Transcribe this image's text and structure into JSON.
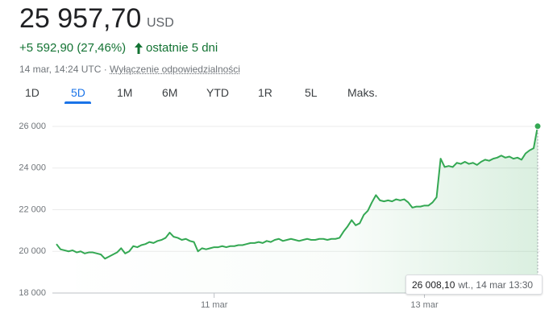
{
  "header": {
    "price": "25 957,70",
    "currency": "USD",
    "change": "+5 592,90 (27,46%)",
    "period": "ostatnie 5 dni",
    "timestamp": "14 mar, 14:24 UTC ·",
    "disclaimer": "Wyłączenie odpowiedzialności"
  },
  "tabs": [
    "1D",
    "5D",
    "1M",
    "6M",
    "YTD",
    "1R",
    "5L",
    "Maks."
  ],
  "selected_tab": "5D",
  "chart_data": {
    "type": "line",
    "color": "#34a853",
    "categories": [
      null,
      null,
      null,
      null,
      null,
      null,
      null,
      null,
      null,
      null,
      null,
      null,
      null,
      null,
      null,
      null,
      null,
      null,
      null,
      null,
      null,
      null,
      null,
      null,
      null,
      null,
      null,
      null,
      null,
      null,
      null,
      null,
      null,
      null,
      null,
      null,
      null,
      null,
      null,
      "11 mar",
      null,
      null,
      null,
      null,
      null,
      null,
      null,
      null,
      null,
      null,
      null,
      null,
      null,
      null,
      null,
      null,
      null,
      null,
      null,
      null,
      null,
      null,
      null,
      null,
      null,
      null,
      null,
      null,
      null,
      null,
      null,
      null,
      null,
      null,
      null,
      null,
      null,
      null,
      null,
      null,
      null,
      null,
      null,
      null,
      null,
      null,
      null,
      null,
      null,
      null,
      null,
      "13 mar",
      null,
      null,
      null,
      null,
      null,
      null,
      null,
      null,
      null,
      null,
      null,
      null,
      null,
      null,
      null,
      null,
      null,
      null,
      null,
      null,
      null,
      null,
      null,
      null,
      null,
      null,
      null,
      null
    ],
    "values": [
      20350,
      20100,
      20050,
      20000,
      20050,
      19950,
      20000,
      19900,
      19950,
      19950,
      19900,
      19850,
      19650,
      19750,
      19850,
      19950,
      20150,
      19900,
      20000,
      20250,
      20200,
      20300,
      20350,
      20450,
      20400,
      20500,
      20550,
      20650,
      20900,
      20700,
      20650,
      20550,
      20600,
      20500,
      20450,
      20000,
      20150,
      20100,
      20150,
      20200,
      20200,
      20250,
      20200,
      20250,
      20250,
      20300,
      20300,
      20350,
      20400,
      20400,
      20450,
      20400,
      20500,
      20450,
      20550,
      20600,
      20500,
      20550,
      20600,
      20550,
      20500,
      20550,
      20600,
      20550,
      20550,
      20600,
      20600,
      20550,
      20600,
      20600,
      20650,
      20950,
      21200,
      21500,
      21250,
      21350,
      21750,
      21950,
      22350,
      22700,
      22450,
      22400,
      22450,
      22400,
      22500,
      22450,
      22500,
      22350,
      22100,
      22150,
      22150,
      22200,
      22200,
      22350,
      22600,
      24450,
      24050,
      24100,
      24050,
      24250,
      24200,
      24300,
      24200,
      24250,
      24150,
      24300,
      24400,
      24350,
      24450,
      24500,
      24600,
      24500,
      24550,
      24450,
      24500,
      24400,
      24700,
      24850,
      24950,
      26008.1
    ],
    "ylim": [
      18000,
      26000
    ],
    "yticks": [
      {
        "value": 18000,
        "label": "18 000"
      },
      {
        "value": 20000,
        "label": "20 000"
      },
      {
        "value": 22000,
        "label": "22 000"
      },
      {
        "value": 24000,
        "label": "24 000"
      },
      {
        "value": 26000,
        "label": "26 000"
      }
    ],
    "grid": true,
    "tooltip": {
      "value": "26 008,10",
      "time": "wt., 14 mar 13:30"
    }
  }
}
